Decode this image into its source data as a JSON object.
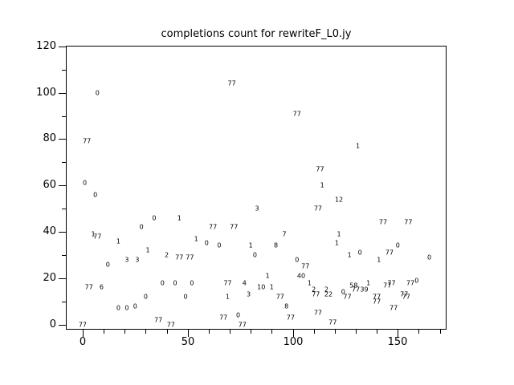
{
  "window": {
    "background_color": "#ffffff",
    "axis_color": "#000000",
    "text_color": "#000000"
  },
  "chart_data": {
    "type": "scatter",
    "title": "completions count for rewriteF_L0.jy",
    "xlabel": "",
    "ylabel": "",
    "marker": "text-label",
    "grid": false,
    "legend": "none",
    "xlim": [
      -8,
      173.2
    ],
    "ylim": [
      -2.2,
      120.3
    ],
    "x_major_ticks": [
      0,
      50,
      100,
      150
    ],
    "x_minor_ticks": [
      10,
      20,
      30,
      40,
      60,
      70,
      80,
      90,
      110,
      120,
      130,
      140,
      160,
      170
    ],
    "y_major_ticks": [
      0,
      20,
      40,
      60,
      80,
      100,
      120
    ],
    "y_minor_ticks": [
      10,
      30,
      50,
      70,
      90,
      110
    ],
    "points": [
      {
        "x": 71,
        "y": 104,
        "label": "77"
      },
      {
        "x": 7,
        "y": 100,
        "label": "0"
      },
      {
        "x": 102,
        "y": 91,
        "label": "77"
      },
      {
        "x": 2,
        "y": 79,
        "label": "77"
      },
      {
        "x": 131,
        "y": 77,
        "label": "1"
      },
      {
        "x": 113,
        "y": 67,
        "label": "77"
      },
      {
        "x": 1,
        "y": 61,
        "label": "0"
      },
      {
        "x": 114,
        "y": 60,
        "label": "1"
      },
      {
        "x": 6,
        "y": 56,
        "label": "0"
      },
      {
        "x": 122,
        "y": 54,
        "label": "12"
      },
      {
        "x": 83,
        "y": 50,
        "label": "3"
      },
      {
        "x": 112,
        "y": 50,
        "label": "77"
      },
      {
        "x": 34,
        "y": 46,
        "label": "0"
      },
      {
        "x": 46,
        "y": 46,
        "label": "1"
      },
      {
        "x": 143,
        "y": 44,
        "label": "77"
      },
      {
        "x": 155,
        "y": 44,
        "label": "77"
      },
      {
        "x": 28,
        "y": 42,
        "label": "0"
      },
      {
        "x": 62,
        "y": 42,
        "label": "77"
      },
      {
        "x": 72,
        "y": 42,
        "label": "77"
      },
      {
        "x": 5,
        "y": 39,
        "label": "1"
      },
      {
        "x": 7,
        "y": 38,
        "label": "77"
      },
      {
        "x": 96,
        "y": 39,
        "label": "7"
      },
      {
        "x": 122,
        "y": 39,
        "label": "1"
      },
      {
        "x": 54,
        "y": 37,
        "label": "1"
      },
      {
        "x": 17,
        "y": 36,
        "label": "1"
      },
      {
        "x": 59,
        "y": 35,
        "label": "0"
      },
      {
        "x": 121,
        "y": 35,
        "label": "1"
      },
      {
        "x": 65,
        "y": 34,
        "label": "0"
      },
      {
        "x": 80,
        "y": 34,
        "label": "1"
      },
      {
        "x": 92,
        "y": 34,
        "label": "8"
      },
      {
        "x": 150,
        "y": 34,
        "label": "0"
      },
      {
        "x": 31,
        "y": 32,
        "label": "1"
      },
      {
        "x": 132,
        "y": 31,
        "label": "0"
      },
      {
        "x": 146,
        "y": 31,
        "label": "77"
      },
      {
        "x": 40,
        "y": 30,
        "label": "2"
      },
      {
        "x": 82,
        "y": 30,
        "label": "0"
      },
      {
        "x": 127,
        "y": 30,
        "label": "1"
      },
      {
        "x": 46,
        "y": 29,
        "label": "77"
      },
      {
        "x": 51,
        "y": 29,
        "label": "77"
      },
      {
        "x": 102,
        "y": 28,
        "label": "0"
      },
      {
        "x": 165,
        "y": 29,
        "label": "0"
      },
      {
        "x": 21,
        "y": 28,
        "label": "3"
      },
      {
        "x": 26,
        "y": 28,
        "label": "3"
      },
      {
        "x": 141,
        "y": 28,
        "label": "1"
      },
      {
        "x": 12,
        "y": 26,
        "label": "0"
      },
      {
        "x": 106,
        "y": 25,
        "label": "77"
      },
      {
        "x": 88,
        "y": 21,
        "label": "1"
      },
      {
        "x": 104,
        "y": 21,
        "label": "40"
      },
      {
        "x": 159,
        "y": 19,
        "label": "0"
      },
      {
        "x": 38,
        "y": 18,
        "label": "0"
      },
      {
        "x": 44,
        "y": 18,
        "label": "0"
      },
      {
        "x": 52,
        "y": 18,
        "label": "0"
      },
      {
        "x": 69,
        "y": 18,
        "label": "77"
      },
      {
        "x": 77,
        "y": 18,
        "label": "4"
      },
      {
        "x": 108,
        "y": 18,
        "label": "1"
      },
      {
        "x": 136,
        "y": 18,
        "label": "1"
      },
      {
        "x": 147,
        "y": 18,
        "label": "77"
      },
      {
        "x": 156,
        "y": 18,
        "label": "77"
      },
      {
        "x": 129,
        "y": 17,
        "label": "58"
      },
      {
        "x": 145,
        "y": 17,
        "label": "77"
      },
      {
        "x": 3,
        "y": 16,
        "label": "77"
      },
      {
        "x": 9,
        "y": 16,
        "label": "6"
      },
      {
        "x": 85,
        "y": 16,
        "label": "10"
      },
      {
        "x": 90,
        "y": 16,
        "label": "1"
      },
      {
        "x": 110,
        "y": 15,
        "label": "2"
      },
      {
        "x": 116,
        "y": 15,
        "label": "2"
      },
      {
        "x": 134,
        "y": 15,
        "label": "39"
      },
      {
        "x": 130,
        "y": 15,
        "label": "77"
      },
      {
        "x": 124,
        "y": 14,
        "label": "0"
      },
      {
        "x": 79,
        "y": 13,
        "label": "3"
      },
      {
        "x": 111,
        "y": 13,
        "label": "77"
      },
      {
        "x": 116,
        "y": 13,
        "label": "2"
      },
      {
        "x": 118,
        "y": 13,
        "label": "2"
      },
      {
        "x": 153,
        "y": 13,
        "label": "77"
      },
      {
        "x": 30,
        "y": 12,
        "label": "0"
      },
      {
        "x": 49,
        "y": 12,
        "label": "0"
      },
      {
        "x": 69,
        "y": 12,
        "label": "1"
      },
      {
        "x": 94,
        "y": 12,
        "label": "77"
      },
      {
        "x": 126,
        "y": 12,
        "label": "77"
      },
      {
        "x": 140,
        "y": 12,
        "label": "77"
      },
      {
        "x": 154,
        "y": 12,
        "label": "77"
      },
      {
        "x": 140,
        "y": 10,
        "label": "77"
      },
      {
        "x": 25,
        "y": 8,
        "label": "0"
      },
      {
        "x": 97,
        "y": 8,
        "label": "8"
      },
      {
        "x": 17,
        "y": 7,
        "label": "0"
      },
      {
        "x": 21,
        "y": 7,
        "label": "0"
      },
      {
        "x": 148,
        "y": 7,
        "label": "77"
      },
      {
        "x": 112,
        "y": 5,
        "label": "77"
      },
      {
        "x": 74,
        "y": 4,
        "label": "0"
      },
      {
        "x": 67,
        "y": 3,
        "label": "77"
      },
      {
        "x": 99,
        "y": 3,
        "label": "77"
      },
      {
        "x": 36,
        "y": 2,
        "label": "77"
      },
      {
        "x": 119,
        "y": 1,
        "label": "77"
      },
      {
        "x": 0,
        "y": 0,
        "label": "77"
      },
      {
        "x": 42,
        "y": 0,
        "label": "77"
      },
      {
        "x": 76,
        "y": 0,
        "label": "77"
      }
    ]
  }
}
